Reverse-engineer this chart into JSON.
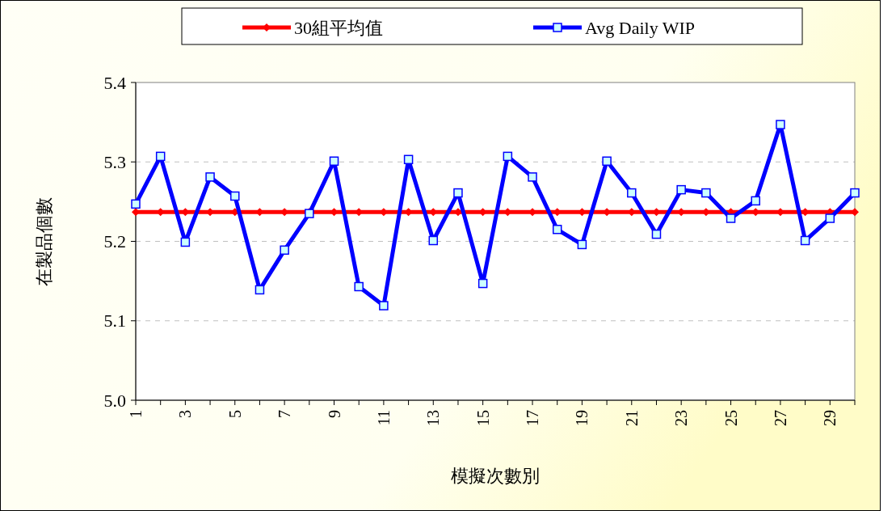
{
  "chart_data": {
    "type": "line",
    "xlabel": "模擬次數別",
    "ylabel": "在製品個數",
    "categories": [
      "1",
      null,
      "3",
      null,
      "5",
      null,
      "7",
      null,
      "9",
      null,
      "11",
      null,
      "13",
      null,
      "15",
      null,
      "17",
      null,
      "19",
      null,
      "21",
      null,
      "23",
      null,
      "25",
      null,
      "27",
      null,
      "29",
      null
    ],
    "series": [
      {
        "name": "30組平均值",
        "color": "#ff0000",
        "marker": "diamond",
        "values": [
          5.237,
          5.237,
          5.237,
          5.237,
          5.237,
          5.237,
          5.237,
          5.237,
          5.237,
          5.237,
          5.237,
          5.237,
          5.237,
          5.237,
          5.237,
          5.237,
          5.237,
          5.237,
          5.237,
          5.237,
          5.237,
          5.237,
          5.237,
          5.237,
          5.237,
          5.237,
          5.237,
          5.237,
          5.237,
          5.237
        ]
      },
      {
        "name": "Avg  Daily  WIP",
        "color": "#0000ff",
        "marker": "square",
        "values": [
          5.247,
          5.307,
          5.199,
          5.281,
          5.257,
          5.139,
          5.189,
          5.235,
          5.301,
          5.143,
          5.119,
          5.303,
          5.201,
          5.261,
          5.147,
          5.307,
          5.281,
          5.215,
          5.196,
          5.301,
          5.261,
          5.209,
          5.265,
          5.261,
          5.229,
          5.251,
          5.347,
          5.201,
          5.229,
          5.261
        ]
      }
    ],
    "ylim": [
      5.0,
      5.4
    ],
    "yticks": [
      {
        "value": 5.0,
        "label": "5.0"
      },
      5.1,
      5.2,
      5.3,
      5.4
    ],
    "grid": "y",
    "legend": "top",
    "line_style": "solid"
  }
}
